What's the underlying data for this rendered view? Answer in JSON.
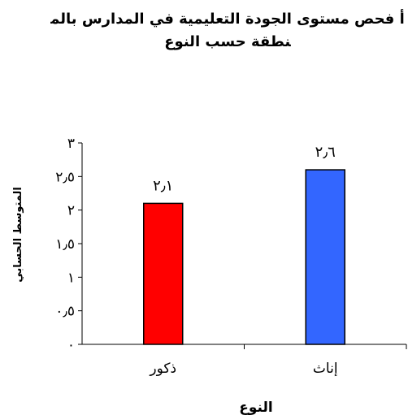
{
  "chart_data": {
    "type": "bar",
    "title": "أ فحص مستوى الجودة التعليمية في المدارس بالمنطقة حسب النوع",
    "categories": [
      "ذكور",
      "إناث"
    ],
    "values": [
      2.1,
      2.6
    ],
    "value_labels": [
      "٢٫١",
      "٢٫٦"
    ],
    "colors": [
      "#ff0000",
      "#3366ff"
    ],
    "xlabel": "النوع",
    "ylabel": "المتوسط الحسابي",
    "ylim": [
      0,
      3
    ],
    "yticks": [
      0,
      0.5,
      1,
      1.5,
      2,
      2.5,
      3
    ],
    "ytick_labels": [
      "٠",
      "٠٫٥",
      "١",
      "١٫٥",
      "٢",
      "٢٫٥",
      "٣"
    ],
    "grid": false,
    "legend": "none"
  }
}
